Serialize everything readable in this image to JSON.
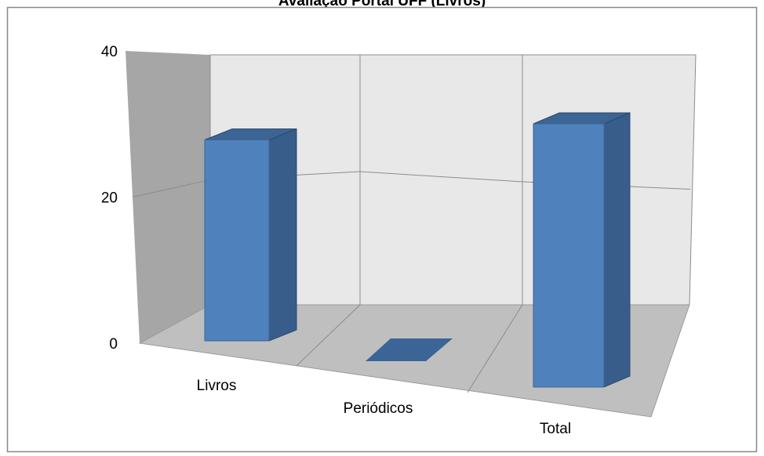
{
  "chart_data": {
    "type": "bar",
    "title": "Avaliação Portal UFF (Livros)",
    "categories": [
      "Livros",
      "Periódicos",
      "Total"
    ],
    "values": [
      27,
      0,
      30
    ],
    "ylim": [
      0,
      40
    ],
    "yticks": [
      "0",
      "20",
      "40"
    ],
    "grid": true,
    "legend": "none",
    "colors": {
      "bar_front": "#4f81bd",
      "bar_side": "#385d8a",
      "bar_top": "#3c6494",
      "back_wall": "#e8e8e8",
      "side_wall": "#a6a6a6",
      "floor": "#bfbfbf",
      "gridline": "#8c8c8c"
    }
  }
}
